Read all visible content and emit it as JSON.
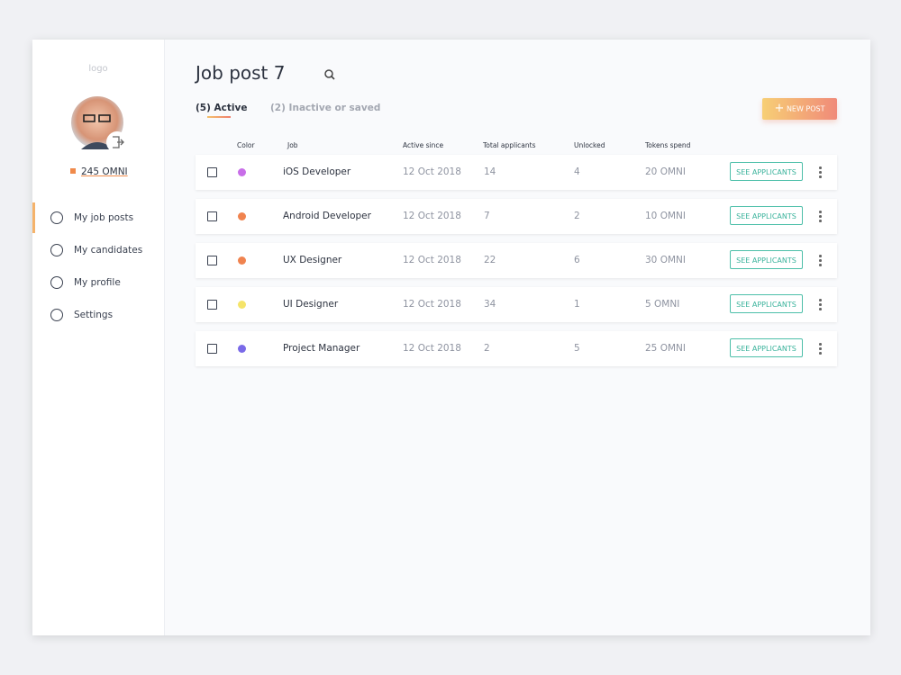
{
  "sidebar": {
    "logo": "logo",
    "balance": "245 OMNI",
    "nav": [
      "My job posts",
      "My candidates",
      "My profile",
      "Settings"
    ]
  },
  "header": {
    "title": "Job post 7",
    "tabs": [
      "(5) Active",
      "(2) Inactive or saved"
    ],
    "new_post": "NEW POST"
  },
  "table": {
    "columns": [
      "Color",
      "Job",
      "Active since",
      "Total applicants",
      "Unlocked",
      "Tokens spend"
    ],
    "action": "SEE APPLICANTS",
    "row_colors": [
      "#c86ee8",
      "#f0834f",
      "#f0834f",
      "#f5e46a",
      "#7a6ae8"
    ],
    "rows": [
      [
        "iOS Developer",
        "12 Oct 2018",
        "14",
        "4",
        "20 OMNI"
      ],
      [
        "Android Developer",
        "12 Oct 2018",
        "7",
        "2",
        "10 OMNI"
      ],
      [
        "UX Designer",
        "12 Oct 2018",
        "22",
        "6",
        "30 OMNI"
      ],
      [
        "UI Designer",
        "12 Oct 2018",
        "34",
        "1",
        "5 OMNI"
      ],
      [
        "Project Manager",
        "12 Oct 2018",
        "2",
        "5",
        "25 OMNI"
      ]
    ]
  }
}
